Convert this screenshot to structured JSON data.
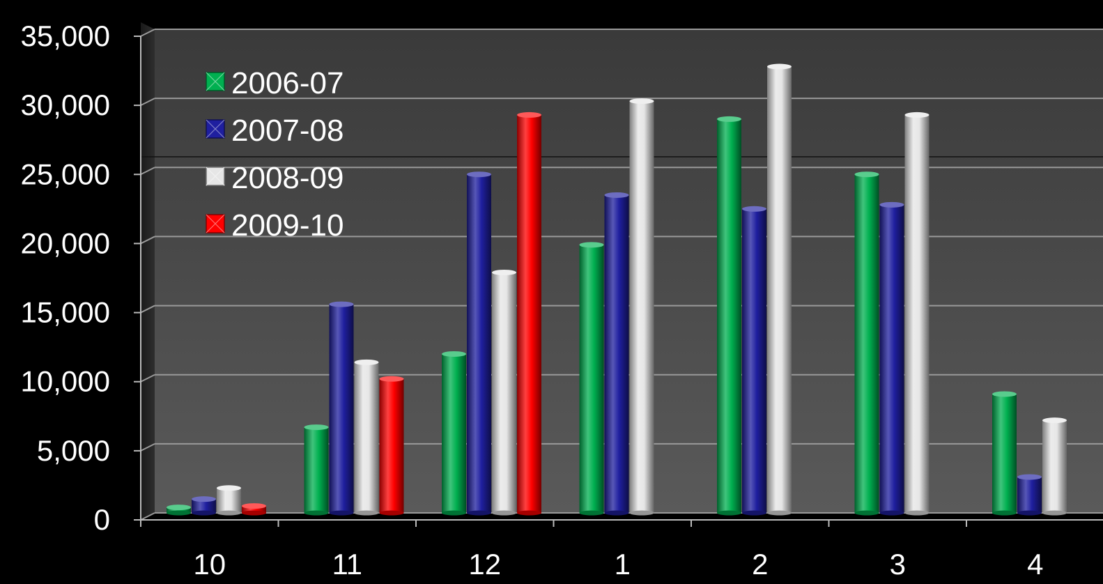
{
  "chart_data": {
    "type": "bar",
    "title": "",
    "xlabel": "",
    "ylabel": "",
    "categories": [
      "10",
      "11",
      "12",
      "1",
      "2",
      "3",
      "4"
    ],
    "ylim": [
      0,
      35000
    ],
    "yticks": [
      "0",
      "5,000",
      "10,000",
      "15,000",
      "20,000",
      "25,000",
      "30,000",
      "35,000"
    ],
    "grid": true,
    "legend_position": "top-left",
    "series": [
      {
        "name": "2006-07",
        "color": "#00b050",
        "values": [
          400,
          6200,
          11500,
          19400,
          28500,
          24500,
          8600
        ]
      },
      {
        "name": "2007-08",
        "color": "#1f1f9f",
        "values": [
          1000,
          15100,
          24500,
          23000,
          22000,
          22300,
          2600
        ]
      },
      {
        "name": "2008-09",
        "color": "#e6e6e6",
        "values": [
          1800,
          10900,
          17400,
          29800,
          32300,
          28800,
          6700
        ]
      },
      {
        "name": "2009-10",
        "color": "#ff0000",
        "values": [
          500,
          9700,
          28800,
          null,
          null,
          null,
          null
        ]
      }
    ]
  }
}
